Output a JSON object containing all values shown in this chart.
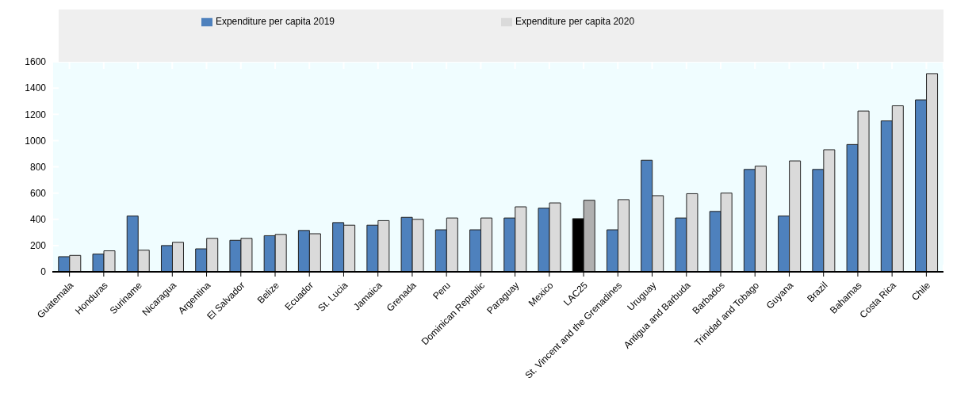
{
  "chart_data": {
    "type": "bar",
    "categories": [
      "Guatemala",
      "Honduras",
      "Suriname",
      "Nicaragua",
      "Argentina",
      "El Salvador",
      "Belize",
      "Ecuador",
      "St. Lucia",
      "Jamaica",
      "Grenada",
      "Peru",
      "Dominican Republic",
      "Paraguay",
      "Mexico",
      "LAC25",
      "St. Vincent and the Grenadines",
      "Uruguay",
      "Antigua and Barbuda",
      "Barbados",
      "Trinidad and Tobago",
      "Guyana",
      "Brazil",
      "Bahamas",
      "Costa Rica",
      "Chile"
    ],
    "series": [
      {
        "name": "Expenditure per capita 2019",
        "color": "#4e81bd",
        "colors": [
          "#4e81bd",
          "#4e81bd",
          "#4e81bd",
          "#4e81bd",
          "#4e81bd",
          "#4e81bd",
          "#4e81bd",
          "#4e81bd",
          "#4e81bd",
          "#4e81bd",
          "#4e81bd",
          "#4e81bd",
          "#4e81bd",
          "#4e81bd",
          "#4e81bd",
          "#000000",
          "#4e81bd",
          "#4e81bd",
          "#4e81bd",
          "#4e81bd",
          "#4e81bd",
          "#4e81bd",
          "#4e81bd",
          "#4e81bd",
          "#4e81bd",
          "#4e81bd"
        ],
        "values": [
          115,
          135,
          425,
          200,
          175,
          240,
          275,
          315,
          375,
          355,
          415,
          320,
          320,
          410,
          485,
          405,
          320,
          850,
          410,
          460,
          780,
          425,
          780,
          970,
          1150,
          1310
        ]
      },
      {
        "name": "Expenditure per capita 2020",
        "color": "#dadada",
        "colors": [
          "#dadada",
          "#dadada",
          "#dadada",
          "#dadada",
          "#dadada",
          "#dadada",
          "#dadada",
          "#dadada",
          "#dadada",
          "#dadada",
          "#dadada",
          "#dadada",
          "#dadada",
          "#dadada",
          "#dadada",
          "#b0b0b0",
          "#dadada",
          "#dadada",
          "#dadada",
          "#dadada",
          "#dadada",
          "#dadada",
          "#dadada",
          "#dadada",
          "#dadada",
          "#dadada"
        ],
        "values": [
          125,
          160,
          165,
          225,
          255,
          255,
          285,
          290,
          355,
          390,
          400,
          410,
          410,
          495,
          525,
          545,
          550,
          580,
          595,
          600,
          805,
          845,
          930,
          1225,
          1265,
          1510
        ]
      }
    ],
    "ylim": [
      0,
      1600
    ],
    "yticks": [
      0,
      200,
      400,
      600,
      800,
      1000,
      1200,
      1400,
      1600
    ],
    "grid": true,
    "legend": "top"
  }
}
